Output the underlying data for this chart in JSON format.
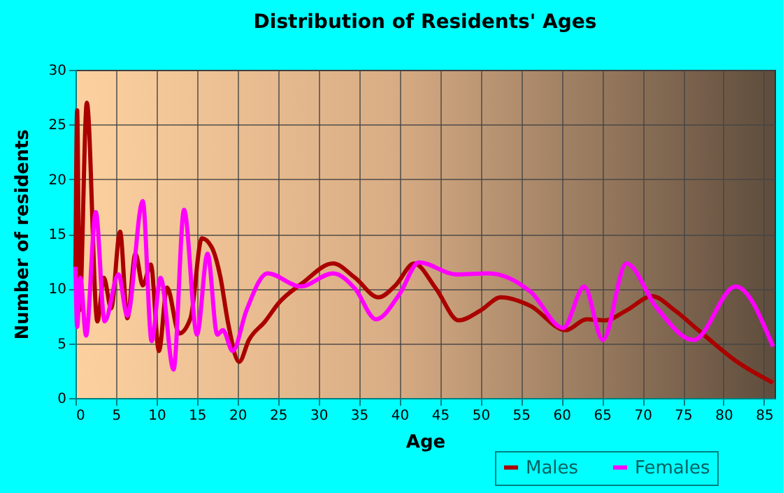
{
  "chart_data": {
    "type": "line",
    "title": "Distribution of Residents' Ages",
    "xlabel": "Age",
    "ylabel": "Number of residents",
    "xlim": [
      0,
      86.3
    ],
    "xticks": [
      0,
      5,
      10,
      15,
      20,
      25,
      30,
      35,
      40,
      45,
      50,
      55,
      60,
      65,
      70,
      75,
      80,
      85
    ],
    "ylim": [
      0,
      30
    ],
    "yticks": [
      0,
      5,
      10,
      15,
      20,
      25,
      30
    ],
    "grid": true,
    "legend": "bottom",
    "series": [
      {
        "name": "Males",
        "color": "#aa0000",
        "x": [
          0,
          0.2,
          0.5,
          1.4,
          2.7,
          3.5,
          4.4,
          5.5,
          6.4,
          7.4,
          8.3,
          9.3,
          10.3,
          11.3,
          12.8,
          14.2,
          15.6,
          16.8,
          17.9,
          18.8,
          20.2,
          21.4,
          23.4,
          25.1,
          28,
          31.8,
          34.5,
          37.4,
          39.5,
          41.8,
          44.5,
          47.3,
          50,
          52.5,
          56.2,
          60.5,
          63.1,
          65.4,
          68,
          71.2,
          74,
          76.9,
          81.5,
          86.1
        ],
        "values": [
          12,
          26.3,
          8,
          27,
          7,
          11,
          8.2,
          15.2,
          7.3,
          13.2,
          10.3,
          12.2,
          4.3,
          10.1,
          5.9,
          7.3,
          14.6,
          13.8,
          11,
          7,
          3.3,
          5.3,
          7,
          8.7,
          10.5,
          12.3,
          11,
          9.2,
          10.3,
          12.3,
          10,
          7.1,
          8,
          9.2,
          8.4,
          6.2,
          7.2,
          7.1,
          8,
          9.3,
          8,
          6.2,
          3.4,
          1.4
        ]
      },
      {
        "name": "Females",
        "color": "#ff00ff",
        "x": [
          0,
          0.2,
          0.6,
          1.3,
          2.5,
          3.6,
          5.3,
          6.4,
          8.3,
          9.4,
          10.5,
          12.1,
          13.4,
          15,
          16.3,
          17.5,
          18.2,
          19.4,
          21.1,
          23.7,
          27.8,
          31.8,
          34.5,
          37.1,
          40,
          42.4,
          47,
          51,
          56.2,
          60.2,
          62.8,
          65.1,
          68,
          71.7,
          76.3,
          81.5,
          86.1
        ],
        "values": [
          12,
          6.5,
          11,
          5.7,
          17,
          7,
          11.3,
          7.5,
          18,
          5.2,
          11,
          2.6,
          17.2,
          5.8,
          13.2,
          5.8,
          6.2,
          4.3,
          8,
          11.4,
          10.2,
          11.4,
          10,
          7.2,
          9.5,
          12.4,
          11.3,
          11.4,
          9.7,
          6.4,
          10.2,
          5.3,
          12.3,
          8.3,
          5.3,
          10.2,
          4.7
        ]
      }
    ]
  }
}
